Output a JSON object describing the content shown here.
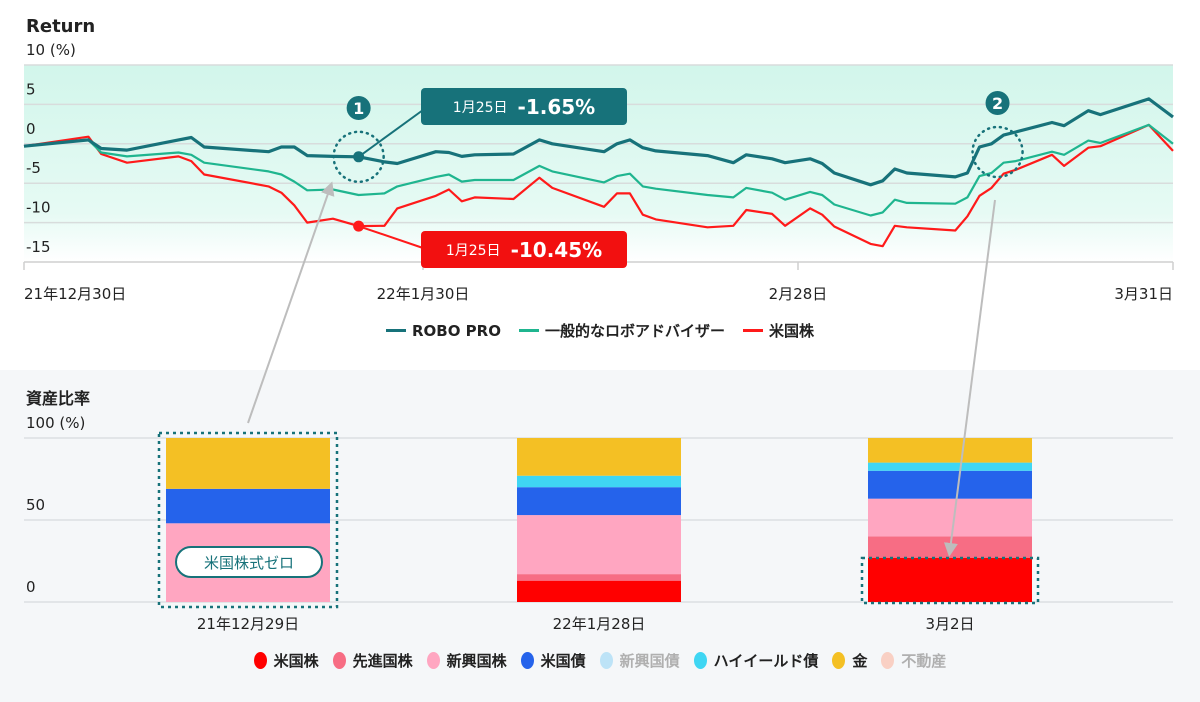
{
  "colors": {
    "robo_pro": "#17727a",
    "generic": "#1fb58f",
    "us_stock": "#ff1a1a",
    "teal": "#17727a"
  },
  "chart_data": [
    {
      "type": "line",
      "title": "Return",
      "ylabel": "10 (%)",
      "ylim": [
        -15,
        10
      ],
      "yticks": [
        "10 (%)",
        "5",
        "0",
        "-5",
        "-10",
        "-15"
      ],
      "ytick_values": [
        10,
        5,
        0,
        -5,
        -10,
        -15
      ],
      "xticks": [
        {
          "date": "2021-12-30",
          "label": "21年12月30日"
        },
        {
          "date": "2022-01-30",
          "label": "22年1月30日"
        },
        {
          "date": "2022-02-28",
          "label": "2月28日"
        },
        {
          "date": "2022-03-31",
          "label": "3月31日"
        }
      ],
      "x": [
        "2021-12-30",
        "2022-01-04",
        "2022-01-05",
        "2022-01-07",
        "2022-01-11",
        "2022-01-12",
        "2022-01-13",
        "2022-01-18",
        "2022-01-19",
        "2022-01-20",
        "2022-01-21",
        "2022-01-23",
        "2022-01-25",
        "2022-01-27",
        "2022-01-28",
        "2022-01-31",
        "2022-02-01",
        "2022-02-02",
        "2022-02-03",
        "2022-02-06",
        "2022-02-08",
        "2022-02-09",
        "2022-02-13",
        "2022-02-14",
        "2022-02-15",
        "2022-02-16",
        "2022-02-17",
        "2022-02-21",
        "2022-02-23",
        "2022-02-24",
        "2022-02-26",
        "2022-02-27",
        "2022-03-01",
        "2022-03-02",
        "2022-03-03",
        "2022-03-06",
        "2022-03-07",
        "2022-03-08",
        "2022-03-09",
        "2022-03-13",
        "2022-03-14",
        "2022-03-15",
        "2022-03-16",
        "2022-03-17",
        "2022-03-18",
        "2022-03-21",
        "2022-03-22",
        "2022-03-24",
        "2022-03-25",
        "2022-03-29",
        "2022-03-31"
      ],
      "series": [
        {
          "name": "ROBO PRO",
          "color": "#17727a",
          "values": [
            -0.3,
            0.5,
            -0.6,
            -0.8,
            0.5,
            0.8,
            -0.4,
            -1.0,
            -0.4,
            -0.4,
            -1.5,
            -1.6,
            -1.65,
            -2.3,
            -2.5,
            -1.0,
            -1.1,
            -1.6,
            -1.4,
            -1.3,
            0.5,
            0.0,
            -1.0,
            0.0,
            0.5,
            -0.5,
            -0.9,
            -1.5,
            -2.4,
            -1.4,
            -1.9,
            -2.4,
            -1.9,
            -2.5,
            -3.7,
            -5.2,
            -4.7,
            -3.2,
            -3.7,
            -4.2,
            -3.7,
            -0.4,
            0.0,
            1.1,
            1.5,
            2.7,
            2.3,
            4.2,
            3.7,
            5.7,
            3.4
          ]
        },
        {
          "name": "一般的なロボアドバイザー",
          "color": "#1fb58f",
          "values": [
            -0.3,
            0.5,
            -1.1,
            -1.6,
            -1.1,
            -1.4,
            -2.4,
            -3.5,
            -3.9,
            -4.8,
            -5.9,
            -5.8,
            -6.5,
            -6.3,
            -5.4,
            -4.2,
            -3.9,
            -4.8,
            -4.6,
            -4.6,
            -2.8,
            -3.5,
            -4.9,
            -4.1,
            -3.8,
            -5.4,
            -5.7,
            -6.5,
            -6.8,
            -5.6,
            -6.2,
            -7.1,
            -6.1,
            -6.5,
            -7.7,
            -9.1,
            -8.7,
            -7.1,
            -7.5,
            -7.6,
            -6.8,
            -4.1,
            -3.7,
            -2.4,
            -2.2,
            -1.0,
            -1.4,
            0.4,
            0.1,
            2.4,
            0.0
          ]
        },
        {
          "name": "米国株",
          "color": "#ff1a1a",
          "values": [
            -0.3,
            0.9,
            -1.3,
            -2.4,
            -1.6,
            -2.2,
            -3.9,
            -5.4,
            -6.2,
            -7.8,
            -10.0,
            -9.5,
            -10.45,
            -10.4,
            -8.2,
            -6.6,
            -5.8,
            -7.3,
            -6.8,
            -7.0,
            -4.3,
            -5.6,
            -8.0,
            -6.3,
            -6.3,
            -9.0,
            -9.6,
            -10.6,
            -10.4,
            -8.4,
            -8.9,
            -10.4,
            -8.2,
            -9.0,
            -10.5,
            -12.7,
            -13.0,
            -10.4,
            -10.6,
            -11.0,
            -9.2,
            -6.6,
            -5.6,
            -3.8,
            -3.3,
            -1.4,
            -2.8,
            -0.5,
            -0.3,
            2.4,
            -0.9
          ]
        }
      ],
      "annotations": [
        {
          "marker": "1",
          "date": "2022-01-25",
          "robo_label_date": "1月25日",
          "robo_value": "-1.65%",
          "us_label_date": "1月25日",
          "us_value": "-10.45%"
        },
        {
          "marker": "2",
          "date": "2022-03-16"
        }
      ],
      "grid": true,
      "legend": "bottom"
    },
    {
      "type": "bar",
      "stacked": true,
      "title": "資産比率",
      "ylabel": "100 (%)",
      "ylim": [
        0,
        100
      ],
      "yticks": [
        "100 (%)",
        "50",
        "0"
      ],
      "ytick_values": [
        100,
        50,
        0
      ],
      "categories": [
        "21年12月29日",
        "22年1月28日",
        "3月2日"
      ],
      "series": [
        {
          "name": "米国株",
          "color": "#ff0000",
          "values": [
            0,
            13,
            27
          ],
          "muted": false
        },
        {
          "name": "先進国株",
          "color": "#f76d84",
          "values": [
            0,
            4,
            13
          ],
          "muted": false
        },
        {
          "name": "新興国株",
          "color": "#ffa6c1",
          "values": [
            48,
            36,
            23
          ],
          "muted": false
        },
        {
          "name": "米国債",
          "color": "#2563eb",
          "values": [
            21,
            17,
            17
          ],
          "muted": false
        },
        {
          "name": "新興国債",
          "color": "#bde3f7",
          "values": [
            0,
            0,
            0
          ],
          "muted": true
        },
        {
          "name": "ハイイールド債",
          "color": "#3fd6f3",
          "values": [
            0,
            7,
            5
          ],
          "muted": false
        },
        {
          "name": "金",
          "color": "#f4c024",
          "values": [
            31,
            23,
            15
          ],
          "muted": false
        },
        {
          "name": "不動産",
          "color": "#f9d0c4",
          "values": [
            0,
            0,
            0
          ],
          "muted": true
        }
      ],
      "annotation_label": "米国株式ゼロ",
      "grid": true,
      "legend": "bottom"
    }
  ]
}
